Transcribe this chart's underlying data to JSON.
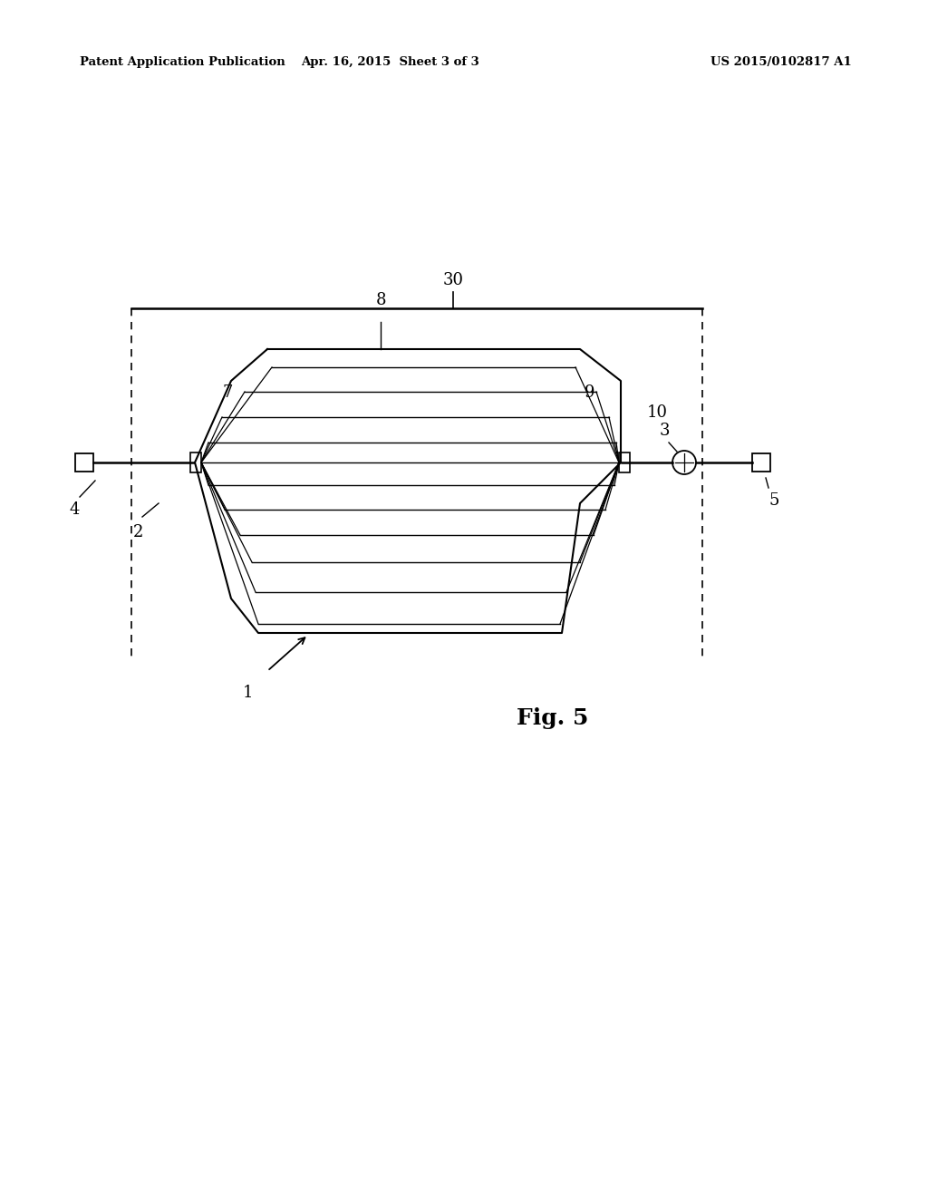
{
  "bg_color": "#ffffff",
  "header_left": "Patent Application Publication",
  "header_mid": "Apr. 16, 2015  Sheet 3 of 3",
  "header_right": "US 2015/0102817 A1",
  "fig_label": "Fig. 5"
}
